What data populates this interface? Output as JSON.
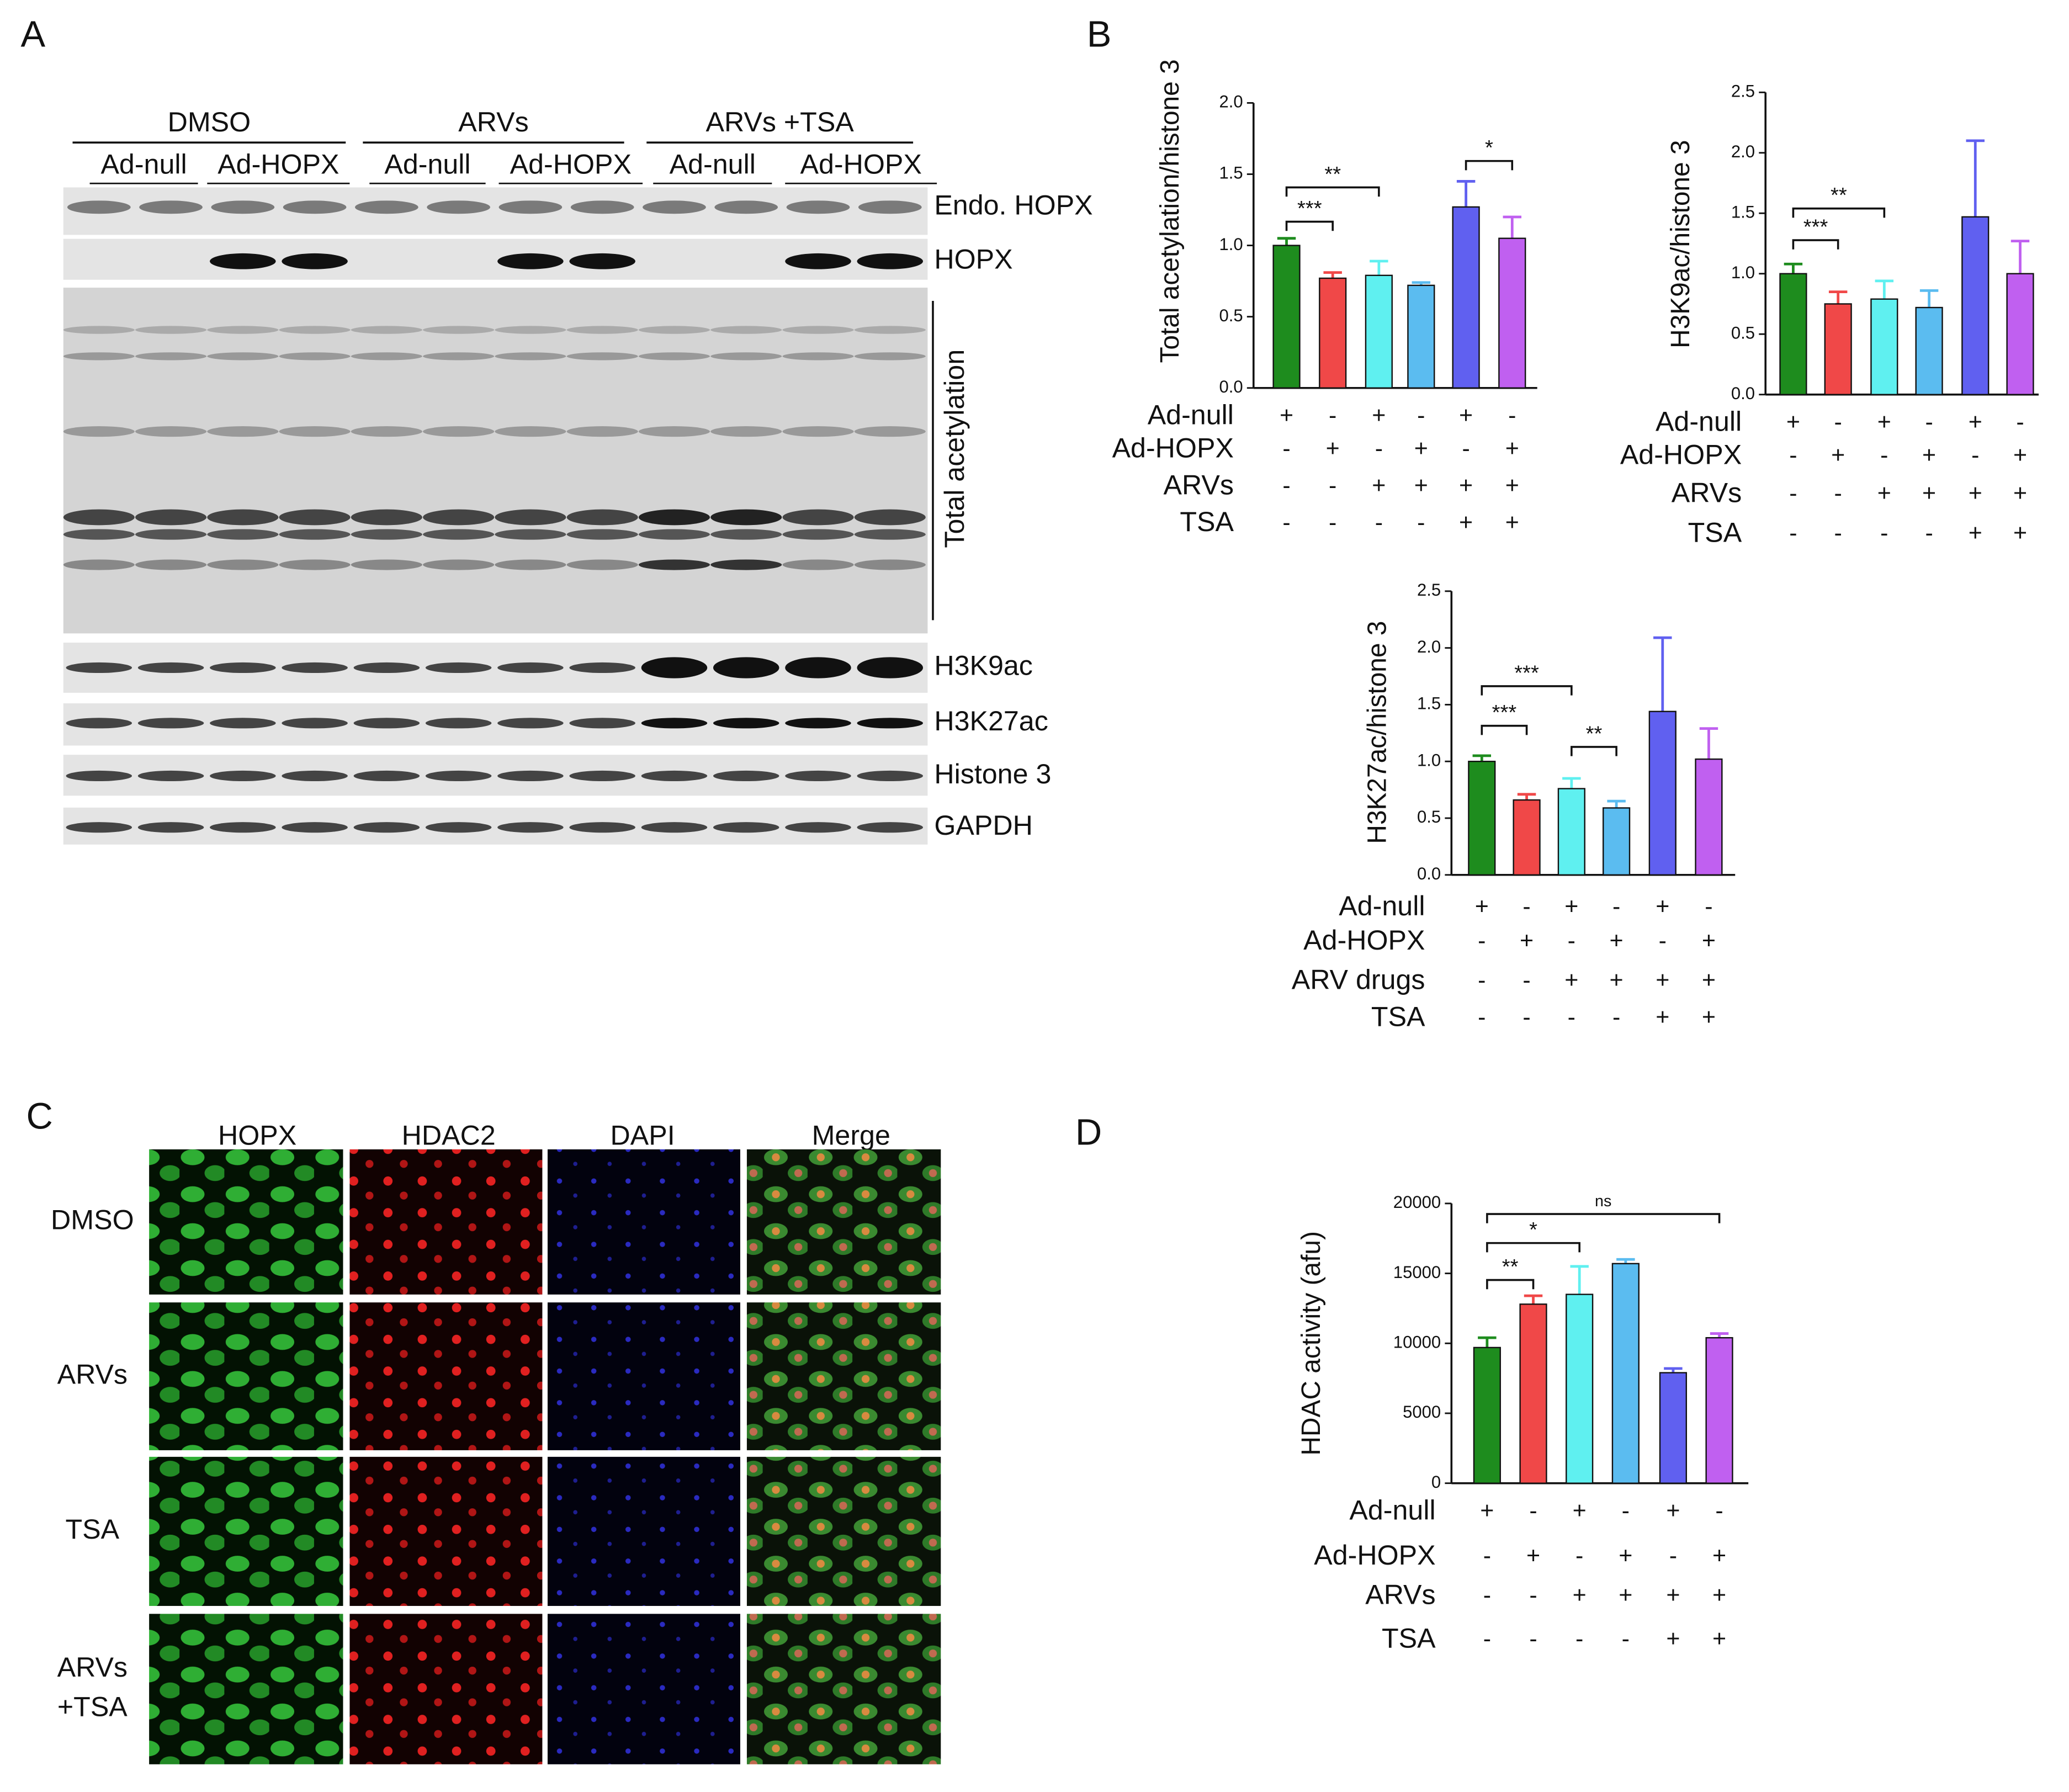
{
  "panel_a": {
    "label": "A",
    "groups": [
      "DMSO",
      "ARVs",
      "ARVs +TSA"
    ],
    "lanes": [
      "Ad-null",
      "Ad-HOPX",
      "Ad-null",
      "Ad-HOPX",
      "Ad-null",
      "Ad-HOPX"
    ],
    "blots": [
      "Endo. HOPX",
      "HOPX",
      "Total acetylation",
      "H3K9ac",
      "H3K27ac",
      "Histone 3",
      "GAPDH"
    ]
  },
  "panel_b": {
    "label": "B"
  },
  "panel_c": {
    "label": "C",
    "columns": [
      "HOPX",
      "HDAC2",
      "DAPI",
      "Merge"
    ],
    "rows": [
      [
        "DMSO"
      ],
      [
        "ARVs"
      ],
      [
        "TSA"
      ],
      [
        "ARVs",
        "+TSA"
      ]
    ]
  },
  "panel_d": {
    "label": "D"
  },
  "chart_data": [
    {
      "type": "bar",
      "ylabel": "Total acetylation/histone 3",
      "values": [
        1.0,
        0.77,
        0.79,
        0.72,
        1.27,
        1.05
      ],
      "errors": [
        0.05,
        0.04,
        0.1,
        0.02,
        0.18,
        0.15
      ],
      "colors": [
        "#1e8c1e",
        "#f04848",
        "#5ff0f0",
        "#5bbcf0",
        "#6060f0",
        "#c060f0"
      ],
      "ylim": [
        0,
        2
      ],
      "yticks": [
        {
          "value": 0,
          "label": "0.0"
        },
        {
          "value": 0.5,
          "label": "0.5"
        },
        {
          "value": 1,
          "label": "1.0"
        },
        {
          "value": 1.5,
          "label": "1.5"
        },
        {
          "value": 2,
          "label": "2.0"
        }
      ],
      "significance": [
        "***",
        "**",
        "*"
      ],
      "conditions": [
        {
          "label": "Ad-null",
          "signs": [
            "+",
            "-",
            "+",
            "-",
            "+",
            "-"
          ]
        },
        {
          "label": "Ad-HOPX",
          "signs": [
            "-",
            "+",
            "-",
            "+",
            "-",
            "+"
          ]
        },
        {
          "label": "ARVs",
          "signs": [
            "-",
            "-",
            "+",
            "+",
            "+",
            "+"
          ]
        },
        {
          "label": "TSA",
          "signs": [
            "-",
            "-",
            "-",
            "-",
            "+",
            "+"
          ]
        }
      ]
    },
    {
      "type": "bar",
      "ylabel": "H3K9ac/histone 3",
      "values": [
        1.0,
        0.75,
        0.79,
        0.72,
        1.47,
        1.0
      ],
      "errors": [
        0.08,
        0.1,
        0.15,
        0.14,
        0.63,
        0.27
      ],
      "colors": [
        "#1e8c1e",
        "#f04848",
        "#5ff0f0",
        "#5bbcf0",
        "#6060f0",
        "#c060f0"
      ],
      "ylim": [
        0,
        2.5
      ],
      "yticks": [
        {
          "value": 0,
          "label": "0.0"
        },
        {
          "value": 0.5,
          "label": "0.5"
        },
        {
          "value": 1,
          "label": "1.0"
        },
        {
          "value": 1.5,
          "label": "1.5"
        },
        {
          "value": 2,
          "label": "2.0"
        },
        {
          "value": 2.5,
          "label": "2.5"
        }
      ],
      "significance": [
        "***",
        "**"
      ],
      "conditions": [
        {
          "label": "Ad-null",
          "signs": [
            "+",
            "-",
            "+",
            "-",
            "+",
            "-"
          ]
        },
        {
          "label": "Ad-HOPX",
          "signs": [
            "-",
            "+",
            "-",
            "+",
            "-",
            "+"
          ]
        },
        {
          "label": "ARVs",
          "signs": [
            "-",
            "-",
            "+",
            "+",
            "+",
            "+"
          ]
        },
        {
          "label": "TSA",
          "signs": [
            "-",
            "-",
            "-",
            "-",
            "+",
            "+"
          ]
        }
      ]
    },
    {
      "type": "bar",
      "ylabel": "H3K27ac/histone 3",
      "values": [
        1.0,
        0.66,
        0.76,
        0.59,
        1.44,
        1.02
      ],
      "errors": [
        0.05,
        0.05,
        0.09,
        0.06,
        0.65,
        0.27
      ],
      "colors": [
        "#1e8c1e",
        "#f04848",
        "#5ff0f0",
        "#5bbcf0",
        "#6060f0",
        "#c060f0"
      ],
      "ylim": [
        0,
        2.5
      ],
      "yticks": [
        {
          "value": 0,
          "label": "0.0"
        },
        {
          "value": 0.5,
          "label": "0.5"
        },
        {
          "value": 1,
          "label": "1.0"
        },
        {
          "value": 1.5,
          "label": "1.5"
        },
        {
          "value": 2,
          "label": "2.0"
        },
        {
          "value": 2.5,
          "label": "2.5"
        }
      ],
      "significance": [
        "***",
        "***",
        "**"
      ],
      "conditions": [
        {
          "label": "Ad-null",
          "signs": [
            "+",
            "-",
            "+",
            "-",
            "+",
            "-"
          ]
        },
        {
          "label": "Ad-HOPX",
          "signs": [
            "-",
            "+",
            "-",
            "+",
            "-",
            "+"
          ]
        },
        {
          "label": "ARV drugs",
          "signs": [
            "-",
            "-",
            "+",
            "+",
            "+",
            "+"
          ]
        },
        {
          "label": "TSA",
          "signs": [
            "-",
            "-",
            "-",
            "-",
            "+",
            "+"
          ]
        }
      ]
    },
    {
      "type": "bar",
      "ylabel": "HDAC activity (afu)",
      "values": [
        9700,
        12800,
        13500,
        15700,
        7900,
        10400
      ],
      "errors": [
        700,
        600,
        2000,
        300,
        300,
        300
      ],
      "colors": [
        "#1e8c1e",
        "#f04848",
        "#5ff0f0",
        "#5bbcf0",
        "#6060f0",
        "#c060f0"
      ],
      "ylim": [
        0,
        20000
      ],
      "yticks": [
        0,
        5000,
        10000,
        15000,
        20000
      ],
      "significance": [
        "**",
        "*",
        "ns"
      ],
      "conditions": [
        {
          "label": "Ad-null",
          "signs": [
            "+",
            "-",
            "+",
            "-",
            "+",
            "-"
          ]
        },
        {
          "label": "Ad-HOPX",
          "signs": [
            "-",
            "+",
            "-",
            "+",
            "-",
            "+"
          ]
        },
        {
          "label": "ARVs",
          "signs": [
            "-",
            "-",
            "+",
            "+",
            "+",
            "+"
          ]
        },
        {
          "label": "TSA",
          "signs": [
            "-",
            "-",
            "-",
            "-",
            "+",
            "+"
          ]
        }
      ]
    }
  ]
}
